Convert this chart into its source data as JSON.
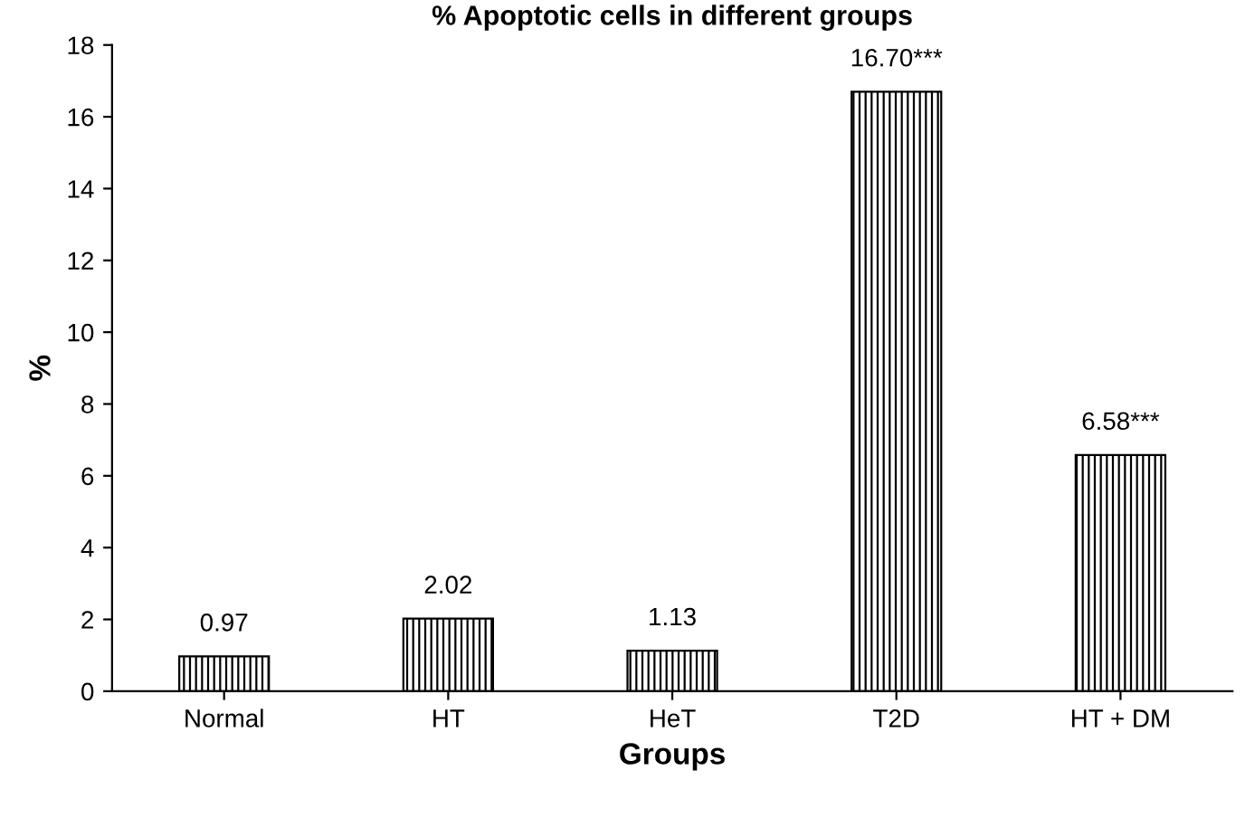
{
  "chart_data": {
    "type": "bar",
    "title": "% Apoptotic cells in different groups",
    "xlabel": "Groups",
    "ylabel": "%",
    "categories": [
      "Normal",
      "HT",
      "HeT",
      "T2D",
      "HT + DM"
    ],
    "values": [
      0.97,
      2.02,
      1.13,
      16.7,
      6.58
    ],
    "value_labels": [
      "0.97",
      "2.02",
      "1.13",
      "16.70***",
      "6.58***"
    ],
    "color": "#000000",
    "ylim": [
      0,
      18
    ],
    "yticks": [
      0,
      2,
      4,
      6,
      8,
      10,
      12,
      14,
      16,
      18
    ],
    "grid": false,
    "legend": false
  }
}
